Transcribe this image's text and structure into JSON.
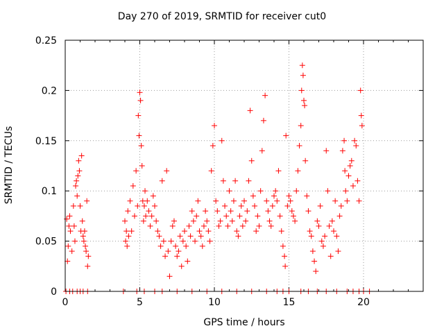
{
  "chart_data": {
    "type": "scatter",
    "title": "Day 270 of 2019, SRMTID for receiver cut0",
    "xlabel": "GPS time / hours",
    "ylabel": "SRMTID / TECUs",
    "xlim": [
      0,
      24
    ],
    "ylim": [
      0,
      0.25
    ],
    "x_ticks": [
      0,
      5,
      10,
      15,
      20
    ],
    "y_ticks": [
      0,
      0.05,
      0.1,
      0.15,
      0.2,
      0.25
    ],
    "x_tick_labels": [
      "0",
      "5",
      "10",
      "15",
      "20"
    ],
    "y_tick_labels": [
      "0",
      "0.05",
      "0.1",
      "0.15",
      "0.2",
      "0.25"
    ],
    "grid": true,
    "marker": "+",
    "series": [
      {
        "name": "SRMTID",
        "color": "#ff0000",
        "points": [
          [
            0.1,
            0.072
          ],
          [
            0.15,
            0.03
          ],
          [
            0.2,
            0.045
          ],
          [
            0.25,
            0.065
          ],
          [
            0.3,
            0.075
          ],
          [
            0.35,
            0.06
          ],
          [
            0.45,
            0.04
          ],
          [
            0.55,
            0.085
          ],
          [
            0.6,
            0.065
          ],
          [
            0.65,
            0.05
          ],
          [
            0.7,
            0.105
          ],
          [
            0.75,
            0.11
          ],
          [
            0.8,
            0.095
          ],
          [
            0.85,
            0.115
          ],
          [
            0.9,
            0.13
          ],
          [
            0.95,
            0.12
          ],
          [
            1.0,
            0.085
          ],
          [
            1.05,
            0.06
          ],
          [
            1.1,
            0.135
          ],
          [
            1.15,
            0.07
          ],
          [
            1.2,
            0.055
          ],
          [
            1.25,
            0.05
          ],
          [
            1.3,
            0.06
          ],
          [
            1.35,
            0.045
          ],
          [
            1.4,
            0.04
          ],
          [
            1.45,
            0.09
          ],
          [
            1.5,
            0.025
          ],
          [
            1.55,
            0.035
          ],
          [
            4.0,
            0.07
          ],
          [
            4.05,
            0.05
          ],
          [
            4.1,
            0.06
          ],
          [
            4.15,
            0.045
          ],
          [
            4.2,
            0.08
          ],
          [
            4.25,
            0.055
          ],
          [
            4.35,
            0.09
          ],
          [
            4.45,
            0.06
          ],
          [
            4.55,
            0.105
          ],
          [
            4.65,
            0.075
          ],
          [
            4.75,
            0.12
          ],
          [
            4.85,
            0.085
          ],
          [
            4.9,
            0.175
          ],
          [
            4.95,
            0.155
          ],
          [
            5.0,
            0.198
          ],
          [
            5.05,
            0.19
          ],
          [
            5.1,
            0.145
          ],
          [
            5.15,
            0.125
          ],
          [
            5.2,
            0.09
          ],
          [
            5.25,
            0.07
          ],
          [
            5.3,
            0.085
          ],
          [
            5.35,
            0.1
          ],
          [
            5.4,
            0.075
          ],
          [
            5.5,
            0.09
          ],
          [
            5.6,
            0.08
          ],
          [
            5.7,
            0.065
          ],
          [
            5.8,
            0.075
          ],
          [
            5.9,
            0.095
          ],
          [
            6.0,
            0.085
          ],
          [
            6.1,
            0.07
          ],
          [
            6.2,
            0.06
          ],
          [
            6.3,
            0.055
          ],
          [
            6.4,
            0.045
          ],
          [
            6.5,
            0.11
          ],
          [
            6.6,
            0.05
          ],
          [
            6.7,
            0.035
          ],
          [
            6.8,
            0.12
          ],
          [
            6.9,
            0.04
          ],
          [
            7.0,
            0.015
          ],
          [
            7.1,
            0.05
          ],
          [
            7.2,
            0.065
          ],
          [
            7.3,
            0.07
          ],
          [
            7.4,
            0.045
          ],
          [
            7.5,
            0.035
          ],
          [
            7.6,
            0.04
          ],
          [
            7.7,
            0.055
          ],
          [
            7.8,
            0.025
          ],
          [
            7.9,
            0.05
          ],
          [
            8.0,
            0.06
          ],
          [
            8.1,
            0.045
          ],
          [
            8.2,
            0.03
          ],
          [
            8.3,
            0.065
          ],
          [
            8.4,
            0.055
          ],
          [
            8.5,
            0.08
          ],
          [
            8.6,
            0.07
          ],
          [
            8.7,
            0.05
          ],
          [
            8.8,
            0.075
          ],
          [
            8.9,
            0.09
          ],
          [
            9.0,
            0.06
          ],
          [
            9.1,
            0.055
          ],
          [
            9.2,
            0.045
          ],
          [
            9.3,
            0.065
          ],
          [
            9.4,
            0.08
          ],
          [
            9.5,
            0.07
          ],
          [
            9.6,
            0.06
          ],
          [
            9.7,
            0.05
          ],
          [
            9.8,
            0.12
          ],
          [
            9.9,
            0.145
          ],
          [
            10.0,
            0.165
          ],
          [
            10.1,
            0.09
          ],
          [
            10.2,
            0.08
          ],
          [
            10.3,
            0.065
          ],
          [
            10.4,
            0.07
          ],
          [
            10.5,
            0.15
          ],
          [
            10.6,
            0.11
          ],
          [
            10.7,
            0.085
          ],
          [
            10.8,
            0.075
          ],
          [
            10.9,
            0.065
          ],
          [
            11.0,
            0.1
          ],
          [
            11.1,
            0.08
          ],
          [
            11.2,
            0.07
          ],
          [
            11.3,
            0.09
          ],
          [
            11.4,
            0.11
          ],
          [
            11.5,
            0.06
          ],
          [
            11.6,
            0.055
          ],
          [
            11.7,
            0.075
          ],
          [
            11.8,
            0.085
          ],
          [
            11.9,
            0.065
          ],
          [
            12.0,
            0.09
          ],
          [
            12.1,
            0.07
          ],
          [
            12.2,
            0.08
          ],
          [
            12.3,
            0.11
          ],
          [
            12.4,
            0.18
          ],
          [
            12.5,
            0.13
          ],
          [
            12.6,
            0.095
          ],
          [
            12.7,
            0.085
          ],
          [
            12.8,
            0.06
          ],
          [
            12.9,
            0.075
          ],
          [
            13.0,
            0.065
          ],
          [
            13.1,
            0.1
          ],
          [
            13.2,
            0.14
          ],
          [
            13.3,
            0.17
          ],
          [
            13.4,
            0.195
          ],
          [
            13.5,
            0.09
          ],
          [
            13.6,
            0.08
          ],
          [
            13.7,
            0.07
          ],
          [
            13.8,
            0.065
          ],
          [
            13.9,
            0.085
          ],
          [
            14.0,
            0.095
          ],
          [
            14.1,
            0.1
          ],
          [
            14.2,
            0.09
          ],
          [
            14.3,
            0.12
          ],
          [
            14.4,
            0.075
          ],
          [
            14.5,
            0.06
          ],
          [
            14.6,
            0.045
          ],
          [
            14.7,
            0.035
          ],
          [
            14.75,
            0.025
          ],
          [
            14.8,
            0.155
          ],
          [
            14.9,
            0.085
          ],
          [
            15.0,
            0.095
          ],
          [
            15.1,
            0.09
          ],
          [
            15.2,
            0.08
          ],
          [
            15.3,
            0.075
          ],
          [
            15.4,
            0.07
          ],
          [
            15.5,
            0.1
          ],
          [
            15.6,
            0.12
          ],
          [
            15.7,
            0.145
          ],
          [
            15.8,
            0.165
          ],
          [
            15.85,
            0.2
          ],
          [
            15.9,
            0.225
          ],
          [
            15.95,
            0.215
          ],
          [
            16.0,
            0.19
          ],
          [
            16.05,
            0.185
          ],
          [
            16.1,
            0.13
          ],
          [
            16.2,
            0.095
          ],
          [
            16.3,
            0.08
          ],
          [
            16.4,
            0.06
          ],
          [
            16.5,
            0.055
          ],
          [
            16.6,
            0.04
          ],
          [
            16.7,
            0.03
          ],
          [
            16.8,
            0.02
          ],
          [
            16.9,
            0.07
          ],
          [
            17.0,
            0.065
          ],
          [
            17.1,
            0.085
          ],
          [
            17.2,
            0.05
          ],
          [
            17.3,
            0.045
          ],
          [
            17.4,
            0.055
          ],
          [
            17.5,
            0.14
          ],
          [
            17.6,
            0.1
          ],
          [
            17.7,
            0.065
          ],
          [
            17.8,
            0.035
          ],
          [
            17.9,
            0.07
          ],
          [
            18.0,
            0.06
          ],
          [
            18.1,
            0.09
          ],
          [
            18.2,
            0.055
          ],
          [
            18.3,
            0.04
          ],
          [
            18.4,
            0.075
          ],
          [
            18.5,
            0.085
          ],
          [
            18.6,
            0.14
          ],
          [
            18.7,
            0.15
          ],
          [
            18.75,
            0.12
          ],
          [
            18.8,
            0.1
          ],
          [
            18.9,
            0.09
          ],
          [
            19.0,
            0.115
          ],
          [
            19.1,
            0.125
          ],
          [
            19.2,
            0.13
          ],
          [
            19.3,
            0.105
          ],
          [
            19.4,
            0.15
          ],
          [
            19.5,
            0.145
          ],
          [
            19.6,
            0.11
          ],
          [
            19.7,
            0.09
          ],
          [
            19.8,
            0.2
          ],
          [
            19.85,
            0.175
          ],
          [
            19.9,
            0.165
          ],
          [
            0.05,
            0
          ],
          [
            0.3,
            0
          ],
          [
            0.5,
            0
          ],
          [
            0.8,
            0
          ],
          [
            1.0,
            0
          ],
          [
            1.2,
            0
          ],
          [
            1.5,
            0
          ],
          [
            3.9,
            0
          ],
          [
            4.8,
            0
          ],
          [
            5.3,
            0
          ],
          [
            6.0,
            0
          ],
          [
            6.5,
            0
          ],
          [
            7.5,
            0
          ],
          [
            8.5,
            0
          ],
          [
            9.5,
            0
          ],
          [
            10.5,
            0
          ],
          [
            11.5,
            0
          ],
          [
            12.5,
            0
          ],
          [
            13.5,
            0
          ],
          [
            14.2,
            0
          ],
          [
            14.6,
            0
          ],
          [
            15.0,
            0
          ],
          [
            15.8,
            0
          ],
          [
            16.3,
            0
          ],
          [
            16.9,
            0
          ],
          [
            17.5,
            0
          ],
          [
            18.2,
            0
          ],
          [
            18.9,
            0
          ],
          [
            19.3,
            0
          ],
          [
            19.7,
            0
          ],
          [
            20.0,
            0
          ],
          [
            20.4,
            0
          ]
        ]
      }
    ]
  }
}
